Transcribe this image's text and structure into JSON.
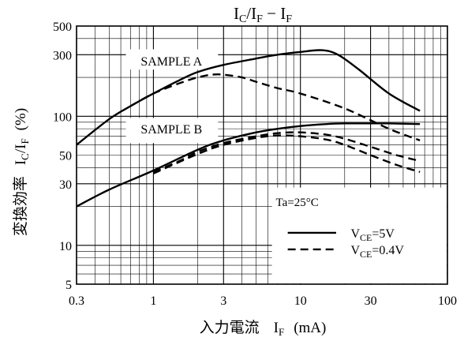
{
  "chart_data": {
    "type": "line",
    "title": {
      "main": "I",
      "sub1": "C",
      "mid": "/I",
      "sub2": "F",
      "sep": " − ",
      "tail": "I",
      "sub3": "F"
    },
    "x_label": {
      "jp": "入力電流",
      "var": "I",
      "sub": "F",
      "unit": "(mA)"
    },
    "y_label": {
      "jp": "変換効率",
      "main": "I",
      "sub1": "C",
      "mid": "/I",
      "sub2": "F",
      "unit": "(%)"
    },
    "x_scale": "log",
    "y_scale": "log",
    "xlim": [
      0.3,
      100
    ],
    "ylim": [
      5,
      500
    ],
    "x_ticks": [
      {
        "value": 0.3,
        "label": "0.3"
      },
      {
        "value": 1,
        "label": "1"
      },
      {
        "value": 3,
        "label": "3"
      },
      {
        "value": 10,
        "label": "10"
      },
      {
        "value": 30,
        "label": "30"
      },
      {
        "value": 100,
        "label": "100"
      }
    ],
    "y_ticks": [
      {
        "value": 5,
        "label": "5"
      },
      {
        "value": 10,
        "label": "10"
      },
      {
        "value": 30,
        "label": "30"
      },
      {
        "value": 50,
        "label": "50"
      },
      {
        "value": 100,
        "label": "100"
      },
      {
        "value": 300,
        "label": "300"
      },
      {
        "value": 500,
        "label": "500"
      }
    ],
    "grid": true,
    "condition": "Ta=25°C",
    "legend": [
      {
        "style": "solid",
        "var": "V",
        "sub": "CE",
        "value": "=5V"
      },
      {
        "style": "dashed",
        "var": "V",
        "sub": "CE",
        "value": "=0.4V"
      }
    ],
    "annotations": [
      {
        "text": "SAMPLE A",
        "x": 0.82,
        "y": 270
      },
      {
        "text": "SAMPLE B",
        "x": 0.82,
        "y": 80
      }
    ],
    "series": [
      {
        "sample": "SAMPLE A",
        "condition": "VCE=5V",
        "style": "solid",
        "x": [
          0.3,
          0.5,
          0.7,
          1,
          1.5,
          2,
          3,
          5,
          7,
          10,
          14,
          18,
          25,
          40,
          65
        ],
        "y": [
          60,
          95,
          120,
          150,
          190,
          220,
          250,
          280,
          300,
          315,
          325,
          300,
          230,
          150,
          110
        ]
      },
      {
        "sample": "SAMPLE A",
        "condition": "VCE=0.4V",
        "style": "dashed",
        "x": [
          0.7,
          1,
          1.5,
          2,
          2.5,
          3,
          4,
          5,
          7,
          10,
          20,
          40,
          65
        ],
        "y": [
          120,
          150,
          180,
          200,
          210,
          210,
          200,
          185,
          165,
          150,
          115,
          80,
          65
        ]
      },
      {
        "sample": "SAMPLE B",
        "condition": "VCE=5V",
        "style": "solid",
        "x": [
          0.3,
          0.5,
          1,
          2,
          3,
          5,
          7,
          10,
          15,
          20,
          30,
          40,
          65
        ],
        "y": [
          20,
          27,
          38,
          55,
          65,
          75,
          80,
          84,
          87,
          88,
          88,
          88,
          87
        ]
      },
      {
        "sample": "SAMPLE B",
        "condition": "VCE=0.4V",
        "style": "dashed",
        "x": [
          1,
          1.5,
          2,
          3,
          5,
          7,
          10,
          15,
          20,
          30,
          45,
          65
        ],
        "y": [
          37,
          45,
          53,
          62,
          70,
          74,
          75,
          72,
          67,
          58,
          50,
          45
        ]
      },
      {
        "sample": "SAMPLE B (lower)",
        "condition": "VCE=0.4V",
        "style": "dashed",
        "x": [
          1,
          2,
          3,
          5,
          7,
          10,
          15,
          20,
          30,
          45,
          65
        ],
        "y": [
          36,
          51,
          60,
          68,
          71,
          70,
          66,
          60,
          50,
          42,
          37
        ]
      }
    ]
  }
}
